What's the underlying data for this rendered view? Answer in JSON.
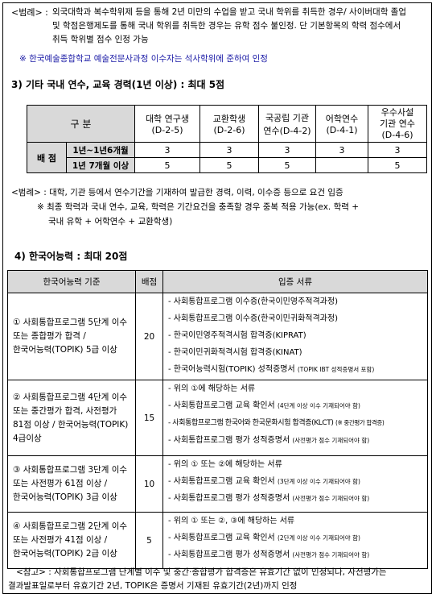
{
  "note1": {
    "label": "<범례> :",
    "line1": "외국대학과 복수학위제 등을 통해 2년 미만의 수업을 받고 국내 학위를 취득한 경우/ 사이버대학 졸업",
    "line2": "및 학점은행제도를 통해 국내 학위를 취득한 경우는 유학 점수 불인정. 단 기본항목의 학력 점수에서",
    "line3": "취득 학위별 점수 인정 가능"
  },
  "note2": "※ 한국예술종합학교 예술전문사과정 이수자는 석사학위에 준하여 인정",
  "section3": {
    "title": "3) 기타 국내 연수, 교육 경력(1년 이상) : 최대 5점"
  },
  "table1": {
    "header_label": "구 분",
    "columns": [
      {
        "line1": "대학 연구생",
        "line2": "(D-2-5)"
      },
      {
        "line1": "교환학생",
        "line2": "(D-2-6)"
      },
      {
        "line1": "국공립 기관",
        "line2": "연수(D-4-2)"
      },
      {
        "line1": "어학연수",
        "line2": "(D-4-1)"
      },
      {
        "line1": "우수사설",
        "line2": "기관 연수",
        "line3": "(D-4-6)"
      }
    ],
    "row_group": "배 점",
    "rows": [
      {
        "label": "1년~1년6개월",
        "values": [
          "3",
          "3",
          "3",
          "3",
          "3"
        ]
      },
      {
        "label": "1년 7개월 이상",
        "values": [
          "5",
          "5",
          "5",
          "",
          "5"
        ]
      }
    ]
  },
  "note3": {
    "line1": "<범례> : 대학, 기관 등에서 연수기간을 기재하여 발급한 경력, 이력, 이수증 등으로 요건 입증",
    "line2": "※ 최종 학력과 국내 연수, 교육, 학력은 기간요건을 충족할 경우 중복 적용 가능(ex. 학력 +",
    "line3": "국내 유학 + 어학연수 + 교환학생)"
  },
  "section4": {
    "title": "4) 한국어능력 : 최대 20점"
  },
  "table2": {
    "headers": [
      "한국어능력 기준",
      "배점",
      "입증 서류"
    ],
    "rows": [
      {
        "criteria": [
          "① 사회통합프로그램 5단계 이수",
          "또는 종합평가 합격 /",
          "한국어능력(TOPIK) 5급 이상"
        ],
        "score": "20",
        "docs": [
          {
            "text": "- 사회통합프로그램 이수증(한국이민영주적격과정)",
            "small": ""
          },
          {
            "text": "- 사회통합프로그램 이수증(한국이민귀화적격과정)",
            "small": ""
          },
          {
            "text": "- 한국이민영주적격시험 합격증(KIPRAT)",
            "small": ""
          },
          {
            "text": "- 한국이민귀화적격시험 합격증(KINAT)",
            "small": ""
          },
          {
            "text": "- 한국어능력시험(TOPIK) 성적증명서",
            "small": "(TOPIK IBT 성적증명서 포함)"
          }
        ]
      },
      {
        "criteria": [
          "② 사회통합프로그램 4단계 이수",
          "또는 중간평가 합격, 사전평가",
          "81점 이상 / 한국어능력(TOPIK)",
          "4급이상"
        ],
        "score": "15",
        "docs": [
          {
            "text": "- 위의 ①에 해당하는 서류",
            "small": ""
          },
          {
            "text": "- 사회통합프로그램 교육 확인서",
            "small": "(4단계 이상 이수 기재되어야 함)"
          },
          {
            "text": "- 사회통합프로그램 한국어와 한국문화시험 합격증(KLCT)",
            "small": "(※ 중간평가 합격증)"
          },
          {
            "text": "- 사회통합프로그램 평가 성적증명서",
            "small": "(사전평가 점수 기재되어야 함)"
          }
        ]
      },
      {
        "criteria": [
          "③ 사회통합프로그램 3단계 이수",
          "또는 사전평가 61점 이상 /",
          "한국어능력(TOPIK) 3급 이상"
        ],
        "score": "10",
        "docs": [
          {
            "text": "- 위의 ① 또는 ②에 해당하는 서류",
            "small": ""
          },
          {
            "text": "- 사회통합프로그램 교육 확인서",
            "small": "(3단계 이상 이수 기재되어야 함)"
          },
          {
            "text": "- 사회통합프로그램 평가 성적증명서",
            "small": "(사전평가 점수 기재되어야 함)"
          }
        ]
      },
      {
        "criteria": [
          "④ 사회통합프로그램 2단계 이수",
          "또는 사전평가 41점 이상 /",
          "한국어능력(TOPIK) 2급 이상"
        ],
        "score": "5",
        "docs": [
          {
            "text": "- 위의 ① 또는 ②, ③에 해당하는 서류",
            "small": ""
          },
          {
            "text": "- 사회통합프로그램 교육 확인서",
            "small": "(2단계 이상 이수 기재되어야 함)"
          },
          {
            "text": "- 사회통합프로그램 평가 성적증명서",
            "small": "(사전평가 점수 기재되어야 함)"
          }
        ]
      }
    ]
  },
  "note4": {
    "line1": "<참고> : 사회통합프로그램 단계별 이수 및 중간·종합평가 합격증은 유효기간 없이 인정되나, 사전평가는",
    "line2": "결과발표일로부터 유효기간 2년, TOPIK은 증명서 기재된 유효기간(2년)까지 인정"
  }
}
